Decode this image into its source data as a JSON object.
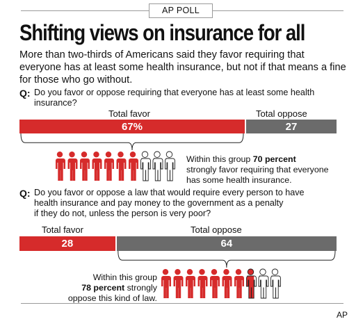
{
  "header": {
    "badge": "AP POLL"
  },
  "title": "Shifting views on insurance for all",
  "subtitle": "More than two-thirds of Americans said they favor requiring that everyone has at least some health insurance, but not if that means a fine for those who go without.",
  "credit": "AP",
  "colors": {
    "favor": "#d62b2b",
    "oppose": "#6b6b6b"
  },
  "chart_data": [
    {
      "type": "bar",
      "question_marker": "Q:",
      "question_lines": [
        "Do you favor or oppose requiring that everyone has at least some health",
        "insurance?"
      ],
      "categories": [
        "Total favor",
        "Total oppose"
      ],
      "values": [
        67,
        27
      ],
      "value_labels": [
        "67%",
        "27"
      ],
      "pictogram": {
        "total": 10,
        "highlighted": 7
      },
      "note_lines": [
        {
          "pre": "Within this group ",
          "bold": "70 percent",
          "post": ""
        },
        {
          "pre": "strongly favor requiring that everyone",
          "bold": "",
          "post": ""
        },
        {
          "pre": "has some health insurance.",
          "bold": "",
          "post": ""
        }
      ]
    },
    {
      "type": "bar",
      "question_marker": "Q:",
      "question_lines": [
        "Do you favor or oppose a law that would require every person to have",
        "health insurance and pay money to the government as a penalty",
        "if they do not, unless the person is very poor?"
      ],
      "categories": [
        "Total favor",
        "Total oppose"
      ],
      "values": [
        28,
        64
      ],
      "value_labels": [
        "28",
        "64"
      ],
      "pictogram": {
        "total": 10,
        "highlighted": 7.8
      },
      "note_lines": [
        {
          "pre": "Within this group",
          "bold": "",
          "post": ""
        },
        {
          "pre": "",
          "bold": "78 percent",
          "post": " strongly"
        },
        {
          "pre": "oppose this kind of law.",
          "bold": "",
          "post": ""
        }
      ]
    }
  ]
}
